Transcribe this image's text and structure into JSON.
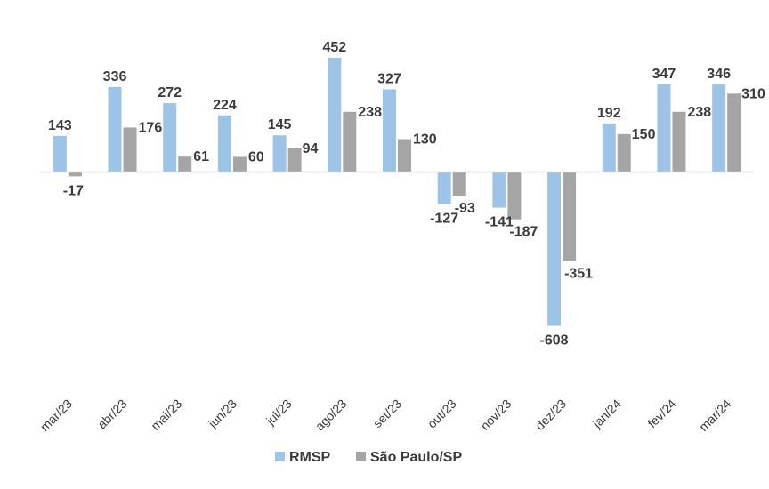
{
  "chart_data": {
    "type": "bar",
    "categories": [
      "mar/23",
      "abr/23",
      "mai/23",
      "jun/23",
      "jul/23",
      "ago/23",
      "set/23",
      "out/23",
      "nov/23",
      "dez/23",
      "jan/24",
      "fev/24",
      "mar/24"
    ],
    "series": [
      {
        "name": "RMSP",
        "color": "#9DC3E6",
        "values": [
          143,
          336,
          272,
          224,
          145,
          452,
          327,
          -127,
          -141,
          -608,
          192,
          347,
          346
        ]
      },
      {
        "name": "São Paulo/SP",
        "color": "#A5A5A5",
        "values": [
          -17,
          176,
          61,
          60,
          94,
          238,
          130,
          -93,
          -187,
          -351,
          150,
          238,
          310
        ]
      }
    ],
    "title": "",
    "xlabel": "",
    "ylabel": "",
    "ylim": [
      -700,
      500
    ],
    "grid": false,
    "legend_position": "bottom",
    "data_labels": true,
    "axis_color": "#D9D9D9",
    "label_color": "#3A3A3A"
  }
}
